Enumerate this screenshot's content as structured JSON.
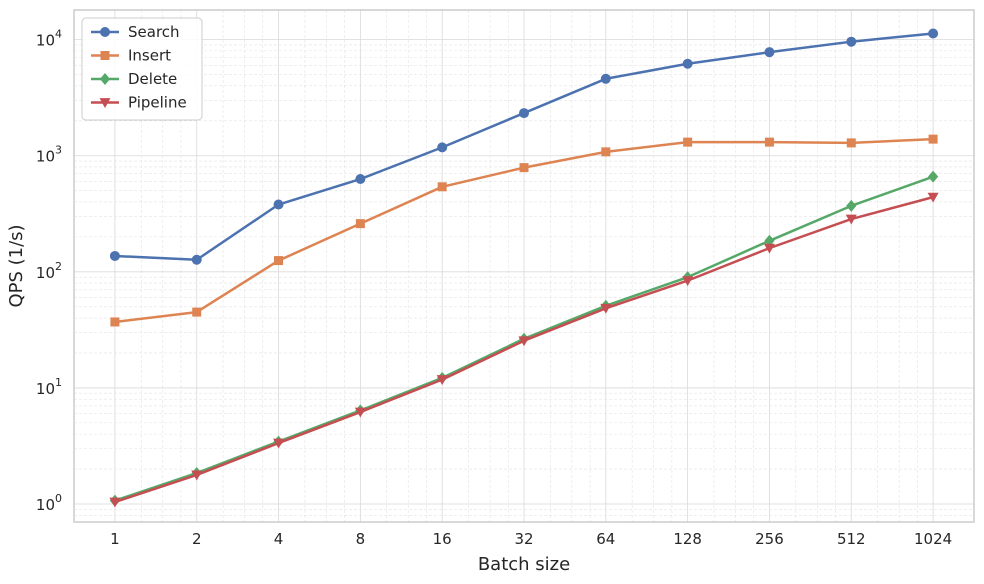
{
  "chart_data": {
    "type": "line",
    "xlabel": "Batch size",
    "ylabel": "QPS (1/s)",
    "x_scale": "log2",
    "y_scale": "log10",
    "x": [
      1,
      2,
      4,
      8,
      16,
      32,
      64,
      128,
      256,
      512,
      1024
    ],
    "x_tick_labels": [
      "1",
      "2",
      "4",
      "8",
      "16",
      "32",
      "64",
      "128",
      "256",
      "512",
      "1024"
    ],
    "ylim": [
      0.7,
      18000
    ],
    "y_ticks": [
      {
        "base": "10",
        "exp": "0"
      },
      {
        "base": "10",
        "exp": "1"
      },
      {
        "base": "10",
        "exp": "2"
      },
      {
        "base": "10",
        "exp": "3"
      },
      {
        "base": "10",
        "exp": "4"
      }
    ],
    "grid": "major and minor, dashed",
    "legend_position": "top-left",
    "series": [
      {
        "name": "Search",
        "color": "#4c72b0",
        "marker": "circle",
        "values": [
          137,
          127,
          380,
          630,
          1180,
          2330,
          4600,
          6200,
          7800,
          9600,
          11300
        ]
      },
      {
        "name": "Insert",
        "color": "#dd8452",
        "marker": "square",
        "values": [
          37,
          45,
          125,
          260,
          540,
          790,
          1080,
          1310,
          1310,
          1290,
          1390
        ]
      },
      {
        "name": "Delete",
        "color": "#55a868",
        "marker": "diamond",
        "values": [
          1.07,
          1.85,
          3.45,
          6.4,
          12.2,
          26.5,
          51,
          90,
          185,
          370,
          660
        ]
      },
      {
        "name": "Pipeline",
        "color": "#c44e52",
        "marker": "triangle-down",
        "values": [
          1.04,
          1.78,
          3.35,
          6.2,
          11.8,
          25.5,
          48.5,
          84,
          160,
          285,
          440
        ]
      }
    ]
  }
}
